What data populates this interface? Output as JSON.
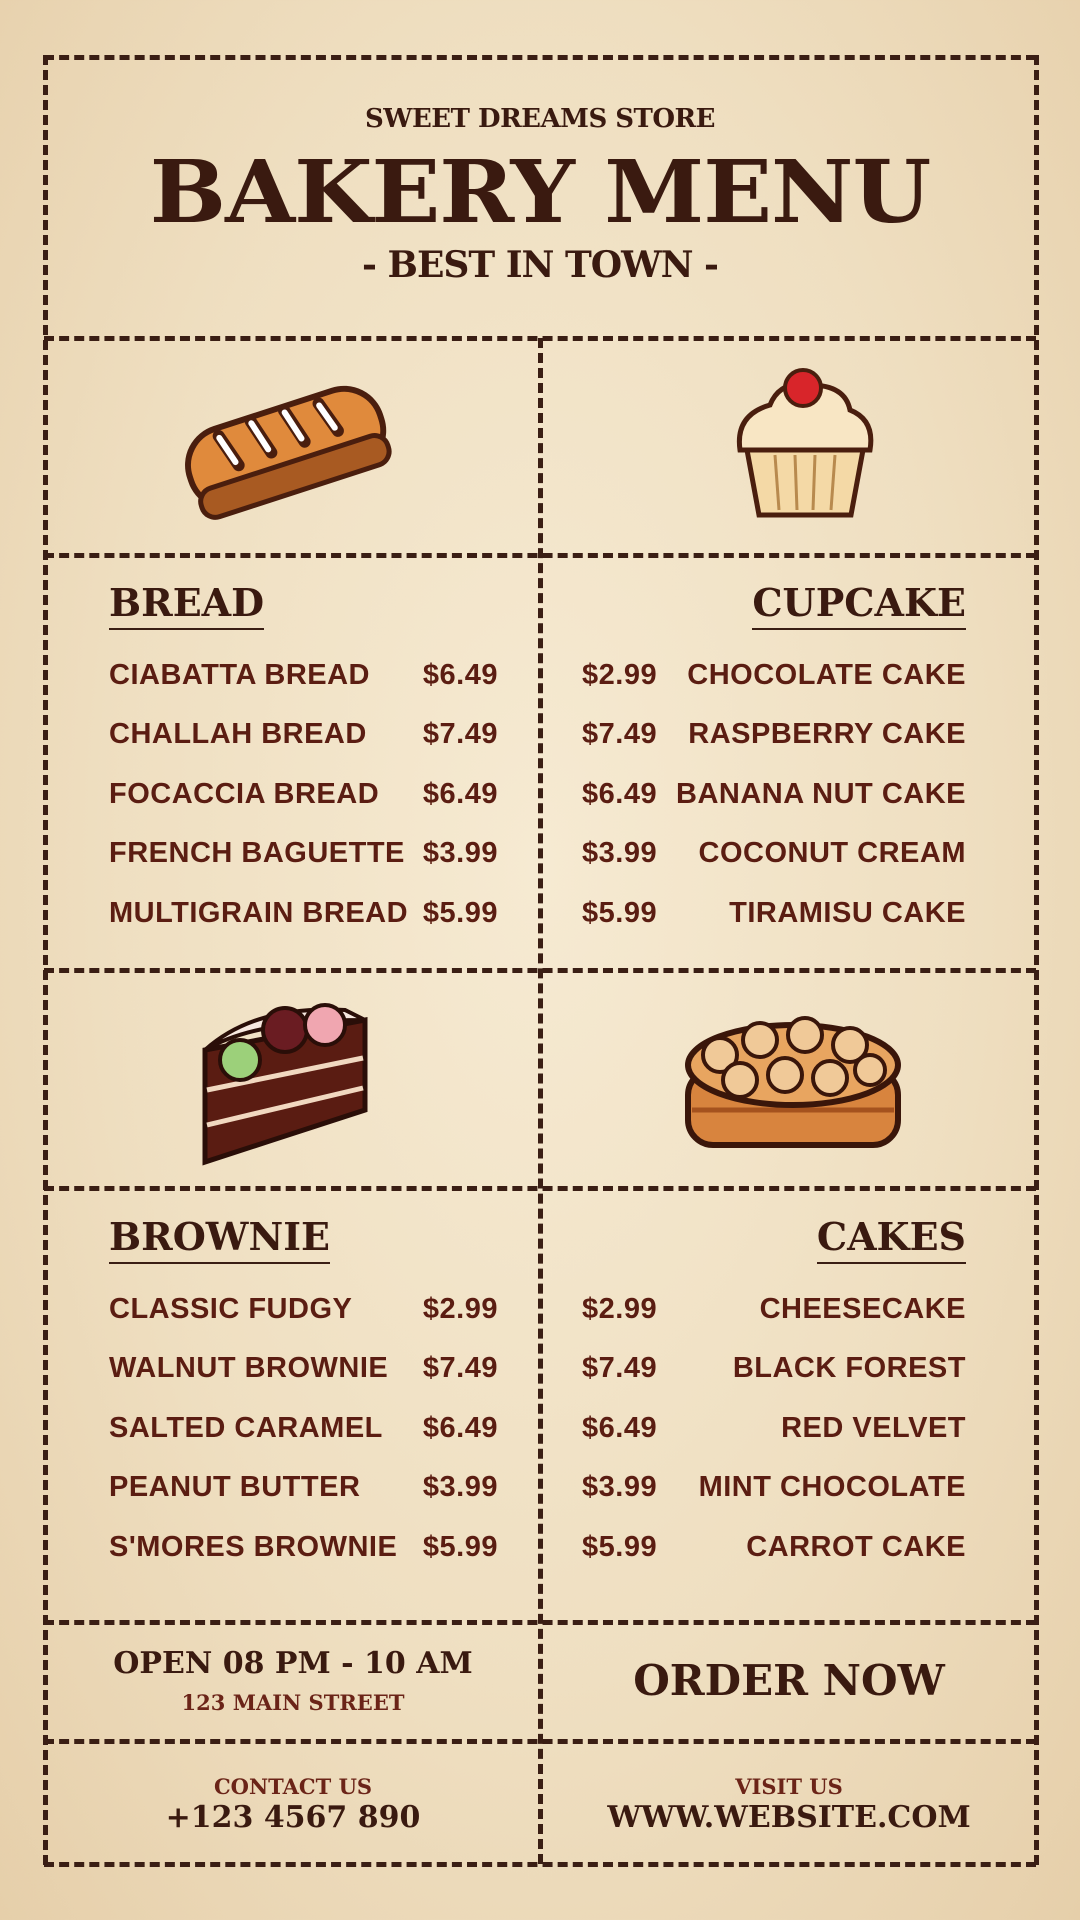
{
  "header": {
    "store": "SWEET DREAMS STORE",
    "title": "BAKERY MENU",
    "tagline": "- BEST IN TOWN -"
  },
  "sections": [
    {
      "title": "BREAD",
      "items": [
        {
          "name": "CIABATTA BREAD",
          "price": "$6.49"
        },
        {
          "name": "CHALLAH BREAD",
          "price": "$7.49"
        },
        {
          "name": "FOCACCIA BREAD",
          "price": "$6.49"
        },
        {
          "name": "FRENCH BAGUETTE",
          "price": "$3.99"
        },
        {
          "name": "MULTIGRAIN BREAD",
          "price": "$5.99"
        }
      ]
    },
    {
      "title": "CUPCAKE",
      "items": [
        {
          "name": "CHOCOLATE CAKE",
          "price": "$2.99"
        },
        {
          "name": "RASPBERRY CAKE",
          "price": "$7.49"
        },
        {
          "name": "BANANA NUT CAKE",
          "price": "$6.49"
        },
        {
          "name": "COCONUT CREAM",
          "price": "$3.99"
        },
        {
          "name": "TIRAMISU CAKE",
          "price": "$5.99"
        }
      ]
    },
    {
      "title": "BROWNIE",
      "items": [
        {
          "name": "CLASSIC FUDGY",
          "price": "$2.99"
        },
        {
          "name": "WALNUT BROWNIE",
          "price": "$7.49"
        },
        {
          "name": "SALTED CARAMEL",
          "price": "$6.49"
        },
        {
          "name": "PEANUT BUTTER",
          "price": "$3.99"
        },
        {
          "name": "S'MORES BROWNIE",
          "price": "$5.99"
        }
      ]
    },
    {
      "title": "CAKES",
      "items": [
        {
          "name": "CHEESECAKE",
          "price": "$2.99"
        },
        {
          "name": "BLACK FOREST",
          "price": "$7.49"
        },
        {
          "name": "RED VELVET",
          "price": "$6.49"
        },
        {
          "name": "MINT CHOCOLATE",
          "price": "$3.99"
        },
        {
          "name": "CARROT CAKE",
          "price": "$5.99"
        }
      ]
    }
  ],
  "footer": {
    "hours": "OPEN 08 PM - 10 AM",
    "address": "123 MAIN STREET",
    "order": "ORDER NOW",
    "contact_label": "CONTACT US",
    "phone": "+123 4567 890",
    "visit_label": "VISIT US",
    "website": "WWW.WEBSITE.COM"
  },
  "colors": {
    "text": "#3a1a10",
    "item": "#5b1d12",
    "background": "#f2e4c8",
    "border": "#3a1e14"
  },
  "illustrations": [
    "bread-icon",
    "cupcake-icon",
    "layer-cake-slice-icon",
    "cinnamon-roll-cake-icon"
  ]
}
